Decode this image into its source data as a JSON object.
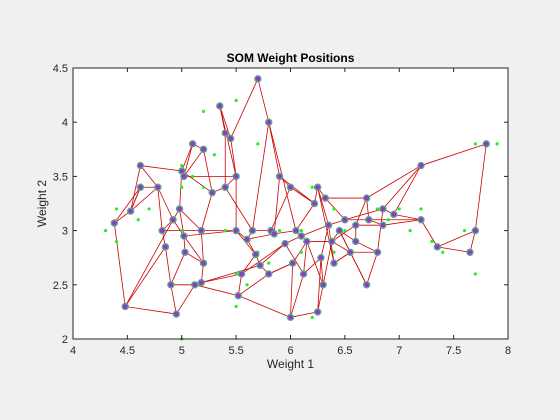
{
  "chart_data": {
    "type": "scatter",
    "title": "SOM Weight Positions",
    "xlabel": "Weight 1",
    "ylabel": "Weight 2",
    "xlim": [
      4,
      8
    ],
    "ylim": [
      2,
      4.5
    ],
    "xticks": [
      4,
      4.5,
      5,
      5.5,
      6,
      6.5,
      7,
      7.5,
      8
    ],
    "yticks": [
      2,
      2.5,
      3,
      3.5,
      4,
      4.5
    ],
    "xtick_labels": [
      "4",
      "4.5",
      "5",
      "5.5",
      "6",
      "6.5",
      "7",
      "7.5",
      "8"
    ],
    "ytick_labels": [
      "2",
      "2.5",
      "3",
      "3.5",
      "4",
      "4.5"
    ],
    "grid": false,
    "colors": {
      "background": "#f0f0f0",
      "axes_bg": "#ffffff",
      "axes_edge": "#262626",
      "sample_points": "#22ee22",
      "neuron_fill": "#9933cc",
      "neuron_edge": "#55aa88",
      "links": "#cc0000"
    },
    "series": [
      {
        "role": "input samples",
        "marker": "dot",
        "points": [
          [
            4.3,
            3.0
          ],
          [
            4.4,
            2.9
          ],
          [
            4.4,
            3.2
          ],
          [
            4.5,
            2.3
          ],
          [
            4.6,
            3.1
          ],
          [
            4.6,
            3.4
          ],
          [
            4.7,
            3.2
          ],
          [
            4.8,
            3.0
          ],
          [
            4.8,
            3.4
          ],
          [
            4.9,
            3.1
          ],
          [
            4.9,
            2.5
          ],
          [
            5.0,
            3.6
          ],
          [
            5.0,
            3.4
          ],
          [
            5.0,
            3.0
          ],
          [
            5.0,
            2.0
          ],
          [
            5.1,
            3.5
          ],
          [
            5.1,
            3.8
          ],
          [
            5.1,
            2.5
          ],
          [
            5.2,
            4.1
          ],
          [
            5.2,
            3.4
          ],
          [
            5.2,
            2.7
          ],
          [
            5.3,
            3.7
          ],
          [
            5.4,
            3.9
          ],
          [
            5.4,
            3.0
          ],
          [
            5.5,
            4.2
          ],
          [
            5.5,
            2.3
          ],
          [
            5.5,
            2.6
          ],
          [
            5.6,
            2.9
          ],
          [
            5.6,
            2.5
          ],
          [
            5.7,
            3.8
          ],
          [
            5.7,
            2.8
          ],
          [
            5.7,
            4.4
          ],
          [
            5.8,
            2.7
          ],
          [
            5.8,
            4.0
          ],
          [
            5.9,
            3.0
          ],
          [
            6.0,
            2.2
          ],
          [
            6.0,
            3.4
          ],
          [
            6.1,
            2.8
          ],
          [
            6.1,
            3.0
          ],
          [
            6.2,
            2.2
          ],
          [
            6.2,
            3.4
          ],
          [
            6.3,
            2.5
          ],
          [
            6.3,
            3.3
          ],
          [
            6.4,
            2.8
          ],
          [
            6.4,
            3.2
          ],
          [
            6.5,
            3.0
          ],
          [
            6.6,
            2.9
          ],
          [
            6.7,
            3.1
          ],
          [
            6.7,
            2.5
          ],
          [
            6.8,
            3.2
          ],
          [
            6.9,
            3.1
          ],
          [
            7.0,
            3.2
          ],
          [
            7.1,
            3.0
          ],
          [
            7.2,
            3.6
          ],
          [
            7.2,
            3.2
          ],
          [
            7.3,
            2.9
          ],
          [
            7.4,
            2.8
          ],
          [
            7.6,
            3.0
          ],
          [
            7.7,
            2.6
          ],
          [
            7.7,
            3.8
          ],
          [
            7.9,
            3.8
          ]
        ]
      },
      {
        "role": "SOM neurons",
        "marker": "circle",
        "points": [
          [
            4.48,
            2.3
          ],
          [
            4.38,
            3.07
          ],
          [
            4.53,
            3.18
          ],
          [
            4.62,
            3.6
          ],
          [
            4.62,
            3.4
          ],
          [
            4.78,
            3.4
          ],
          [
            4.82,
            3.0
          ],
          [
            4.85,
            2.85
          ],
          [
            4.9,
            2.5
          ],
          [
            4.92,
            3.1
          ],
          [
            4.95,
            2.23
          ],
          [
            4.98,
            3.2
          ],
          [
            5.0,
            3.55
          ],
          [
            5.02,
            3.5
          ],
          [
            5.02,
            2.95
          ],
          [
            5.03,
            2.8
          ],
          [
            5.1,
            3.8
          ],
          [
            5.12,
            2.5
          ],
          [
            5.18,
            2.52
          ],
          [
            5.18,
            3.0
          ],
          [
            5.2,
            3.75
          ],
          [
            5.2,
            2.7
          ],
          [
            5.28,
            3.35
          ],
          [
            5.35,
            4.15
          ],
          [
            5.4,
            3.9
          ],
          [
            5.4,
            3.4
          ],
          [
            5.45,
            3.85
          ],
          [
            5.5,
            3.5
          ],
          [
            5.5,
            3.0
          ],
          [
            5.52,
            2.4
          ],
          [
            5.55,
            2.6
          ],
          [
            5.6,
            2.92
          ],
          [
            5.65,
            3.0
          ],
          [
            5.68,
            2.78
          ],
          [
            5.7,
            4.4
          ],
          [
            5.72,
            2.68
          ],
          [
            5.8,
            4.0
          ],
          [
            5.8,
            2.6
          ],
          [
            5.82,
            3.0
          ],
          [
            5.85,
            2.97
          ],
          [
            5.9,
            3.5
          ],
          [
            5.95,
            2.88
          ],
          [
            6.0,
            3.4
          ],
          [
            6.0,
            2.2
          ],
          [
            6.02,
            2.7
          ],
          [
            6.05,
            3.0
          ],
          [
            6.1,
            2.95
          ],
          [
            6.12,
            2.6
          ],
          [
            6.15,
            2.9
          ],
          [
            6.22,
            3.25
          ],
          [
            6.25,
            3.4
          ],
          [
            6.25,
            2.25
          ],
          [
            6.28,
            2.75
          ],
          [
            6.3,
            2.5
          ],
          [
            6.32,
            3.3
          ],
          [
            6.35,
            3.05
          ],
          [
            6.38,
            2.9
          ],
          [
            6.4,
            2.7
          ],
          [
            6.45,
            3.0
          ],
          [
            6.5,
            3.1
          ],
          [
            6.55,
            2.8
          ],
          [
            6.6,
            2.9
          ],
          [
            6.6,
            3.05
          ],
          [
            6.7,
            3.3
          ],
          [
            6.7,
            2.5
          ],
          [
            6.72,
            3.1
          ],
          [
            6.8,
            2.8
          ],
          [
            6.85,
            3.2
          ],
          [
            6.85,
            3.05
          ],
          [
            6.95,
            3.15
          ],
          [
            7.2,
            3.6
          ],
          [
            7.2,
            3.1
          ],
          [
            7.35,
            2.85
          ],
          [
            7.65,
            2.8
          ],
          [
            7.7,
            3.0
          ],
          [
            7.8,
            3.8
          ]
        ]
      }
    ],
    "links": [
      [
        0,
        1
      ],
      [
        0,
        7
      ],
      [
        0,
        10
      ],
      [
        1,
        2
      ],
      [
        2,
        3
      ],
      [
        2,
        4
      ],
      [
        3,
        5
      ],
      [
        4,
        5
      ],
      [
        5,
        6
      ],
      [
        6,
        7
      ],
      [
        7,
        8
      ],
      [
        8,
        10
      ],
      [
        6,
        9
      ],
      [
        9,
        11
      ],
      [
        11,
        12
      ],
      [
        12,
        13
      ],
      [
        13,
        16
      ],
      [
        16,
        20
      ],
      [
        20,
        22
      ],
      [
        22,
        25
      ],
      [
        25,
        27
      ],
      [
        27,
        23
      ],
      [
        23,
        24
      ],
      [
        24,
        26
      ],
      [
        26,
        27
      ],
      [
        26,
        34
      ],
      [
        34,
        36
      ],
      [
        36,
        40
      ],
      [
        40,
        42
      ],
      [
        42,
        49
      ],
      [
        49,
        50
      ],
      [
        50,
        54
      ],
      [
        54,
        63
      ],
      [
        63,
        70
      ],
      [
        70,
        75
      ],
      [
        75,
        74
      ],
      [
        74,
        73
      ],
      [
        73,
        72
      ],
      [
        72,
        71
      ],
      [
        71,
        69
      ],
      [
        69,
        67
      ],
      [
        67,
        66
      ],
      [
        66,
        60
      ],
      [
        60,
        57
      ],
      [
        57,
        55
      ],
      [
        55,
        52
      ],
      [
        52,
        53
      ],
      [
        53,
        51
      ],
      [
        51,
        43
      ],
      [
        43,
        44
      ],
      [
        44,
        37
      ],
      [
        37,
        29
      ],
      [
        29,
        17
      ],
      [
        17,
        18
      ],
      [
        18,
        21
      ],
      [
        21,
        14
      ],
      [
        14,
        15
      ],
      [
        15,
        8
      ],
      [
        9,
        14
      ],
      [
        12,
        22
      ],
      [
        13,
        27
      ],
      [
        19,
        28
      ],
      [
        28,
        31
      ],
      [
        31,
        32
      ],
      [
        32,
        38
      ],
      [
        38,
        39
      ],
      [
        39,
        45
      ],
      [
        45,
        46
      ],
      [
        46,
        48
      ],
      [
        48,
        56
      ],
      [
        56,
        58
      ],
      [
        58,
        61
      ],
      [
        61,
        62
      ],
      [
        62,
        68
      ],
      [
        68,
        65
      ],
      [
        65,
        59
      ],
      [
        59,
        55
      ],
      [
        6,
        19
      ],
      [
        11,
        19
      ],
      [
        19,
        21
      ],
      [
        14,
        28
      ],
      [
        28,
        33
      ],
      [
        33,
        35
      ],
      [
        35,
        41
      ],
      [
        41,
        47
      ],
      [
        47,
        48
      ],
      [
        47,
        52
      ],
      [
        35,
        37
      ],
      [
        33,
        30
      ],
      [
        30,
        29
      ],
      [
        30,
        18
      ],
      [
        31,
        33
      ],
      [
        32,
        36
      ],
      [
        39,
        40
      ],
      [
        41,
        46
      ],
      [
        45,
        49
      ],
      [
        46,
        55
      ],
      [
        48,
        53
      ],
      [
        56,
        60
      ],
      [
        58,
        64
      ],
      [
        64,
        66
      ],
      [
        59,
        67
      ],
      [
        65,
        71
      ],
      [
        69,
        70
      ],
      [
        62,
        63
      ],
      [
        50,
        57
      ],
      [
        38,
        42
      ],
      [
        24,
        25
      ],
      [
        16,
        12
      ],
      [
        3,
        12
      ],
      [
        8,
        17
      ],
      [
        10,
        17
      ],
      [
        0,
        9
      ],
      [
        1,
        4
      ],
      [
        2,
        5
      ],
      [
        15,
        21
      ],
      [
        31,
        39
      ],
      [
        36,
        45
      ],
      [
        27,
        28
      ],
      [
        25,
        32
      ],
      [
        22,
        19
      ],
      [
        40,
        49
      ],
      [
        54,
        59
      ],
      [
        50,
        55
      ],
      [
        57,
        60
      ],
      [
        61,
        66
      ],
      [
        56,
        62
      ],
      [
        63,
        65
      ],
      [
        68,
        71
      ],
      [
        67,
        70
      ],
      [
        72,
        74
      ],
      [
        64,
        58
      ],
      [
        43,
        47
      ],
      [
        44,
        48
      ],
      [
        51,
        52
      ],
      [
        53,
        56
      ],
      [
        37,
        44
      ],
      [
        29,
        43
      ],
      [
        18,
        35
      ],
      [
        30,
        41
      ],
      [
        5,
        9
      ],
      [
        4,
        2
      ],
      [
        11,
        14
      ],
      [
        13,
        20
      ],
      [
        23,
        26
      ]
    ]
  }
}
